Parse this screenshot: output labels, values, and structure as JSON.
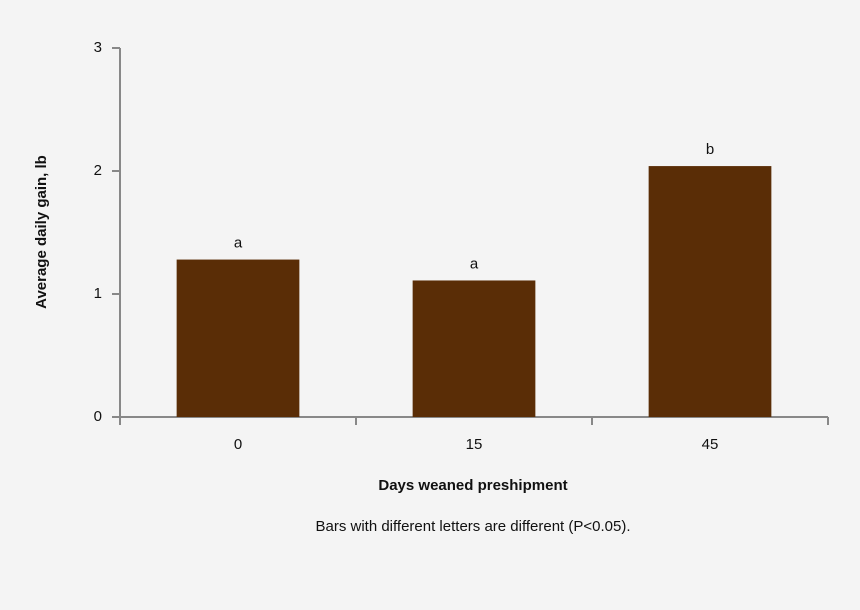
{
  "chart_data": {
    "type": "bar",
    "x_label": "Days weaned preshipment",
    "y_label": "Average daily gain, lb",
    "footnote": "Bars with different letters are different (P<0.05).",
    "categories": [
      "0",
      "15",
      "45"
    ],
    "values": [
      1.28,
      1.11,
      2.04
    ],
    "annotations": [
      "a",
      "a",
      "b"
    ],
    "color": "#5a2d06",
    "ylim": [
      0,
      3
    ],
    "yticks": [
      0,
      1,
      2,
      3
    ],
    "grid": false
  }
}
